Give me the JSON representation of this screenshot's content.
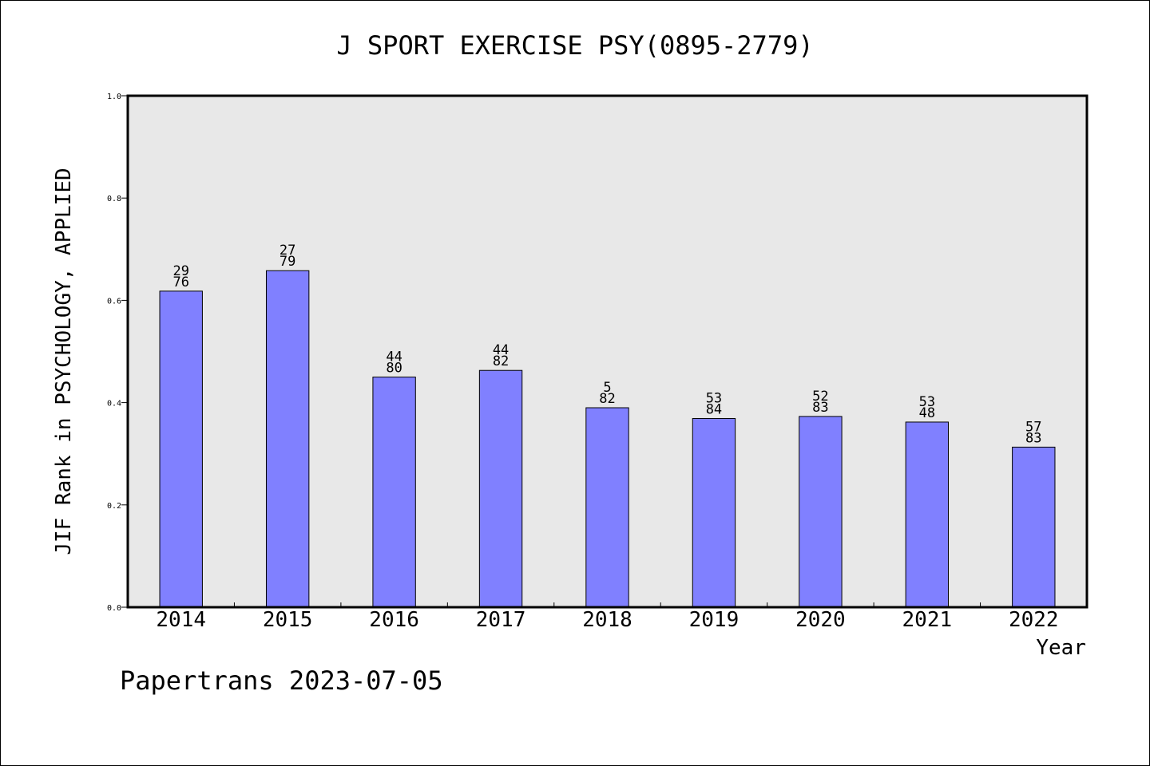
{
  "chart_data": {
    "type": "bar",
    "title": "J SPORT EXERCISE PSY(0895-2779)",
    "xlabel": "Year",
    "ylabel": "JIF Rank in PSYCHOLOGY, APPLIED",
    "ylim": [
      0.0,
      1.0
    ],
    "yticks": [
      "0.0",
      "0.2",
      "0.4",
      "0.6",
      "0.8",
      "1.0"
    ],
    "categories": [
      "2014",
      "2015",
      "2016",
      "2017",
      "2018",
      "2019",
      "2020",
      "2021",
      "2022"
    ],
    "values": [
      0.618,
      0.658,
      0.45,
      0.463,
      0.39,
      0.369,
      0.373,
      0.362,
      0.313
    ],
    "labels_top": [
      "29",
      "27",
      "44",
      "44",
      "5",
      "53",
      "52",
      "53",
      "57"
    ],
    "labels_bottom": [
      "76",
      "79",
      "80",
      "82",
      "82",
      "84",
      "83",
      "48",
      "83"
    ],
    "bar_color": "#8080ff",
    "plot_bg": "#e8e8e8",
    "grid": false
  },
  "footer": {
    "watermark": "Papertrans 2023-07-05"
  }
}
